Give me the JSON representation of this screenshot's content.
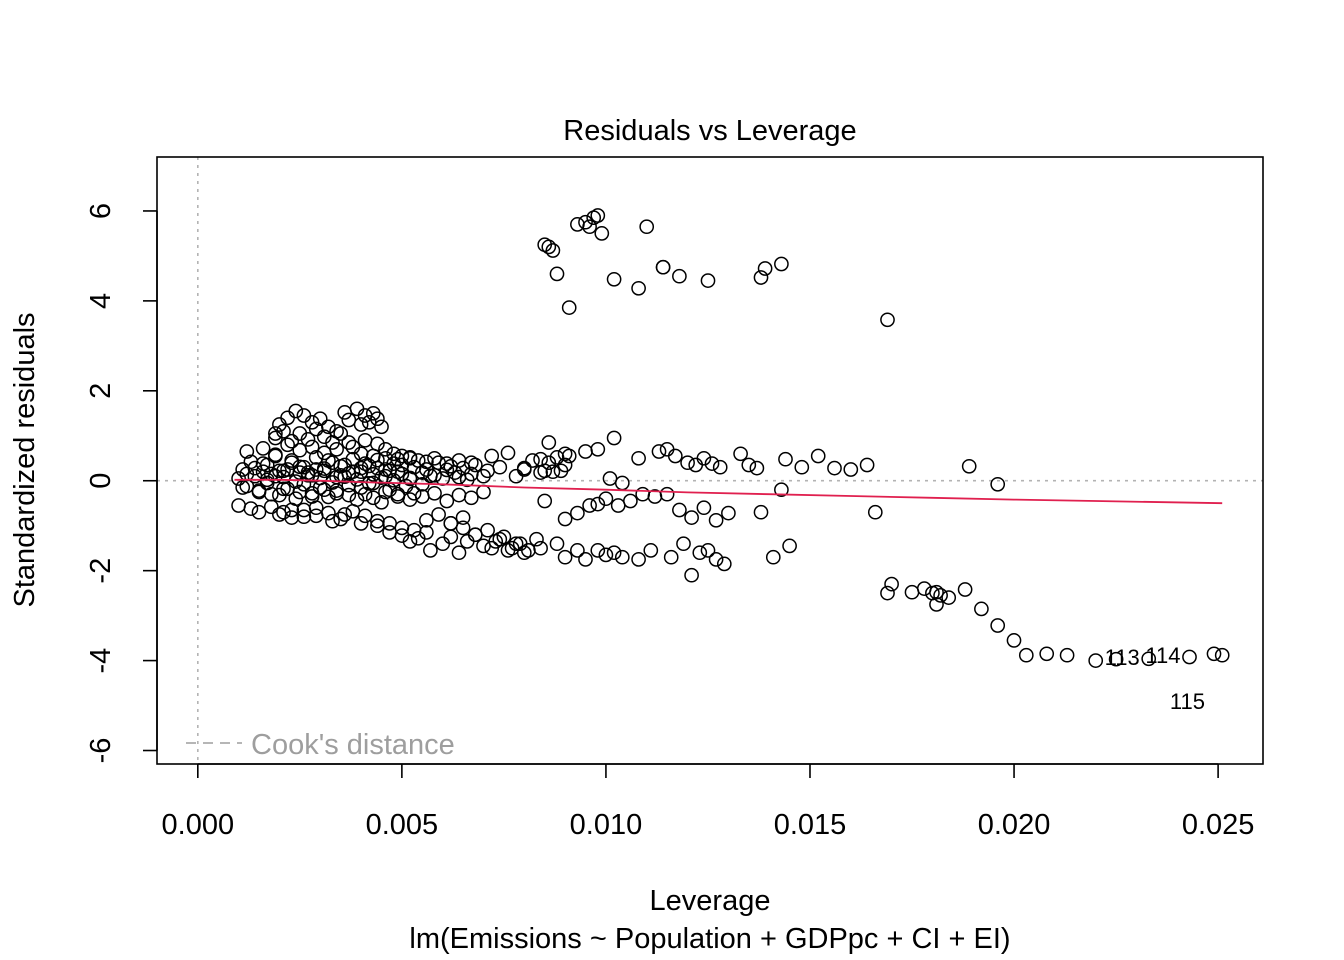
{
  "chart_data": {
    "type": "scatter",
    "title": "Residuals vs Leverage",
    "xlabel": "Leverage",
    "subtitle": "lm(Emissions ~ Population + GDPpc + CI + EI)",
    "ylabel": "Standardized residuals",
    "xlim": [
      -0.001,
      0.0261
    ],
    "ylim": [
      -6.3,
      7.2
    ],
    "x_ticks": [
      0.0,
      0.005,
      0.01,
      0.015,
      0.02,
      0.025
    ],
    "x_tick_labels": [
      "0.000",
      "0.005",
      "0.010",
      "0.015",
      "0.020",
      "0.025"
    ],
    "y_ticks": [
      -6,
      -4,
      -2,
      0,
      2,
      4,
      6
    ],
    "y_tick_labels": [
      "-6",
      "-4",
      "-2",
      "0",
      "2",
      "4",
      "6"
    ],
    "reference_lines": {
      "h": 0,
      "v": 0,
      "style": "dotted",
      "color": "#b3b3b3"
    },
    "legend": {
      "entries": [
        "Cook's distance"
      ],
      "position": "bottom-left",
      "line_style": "dashed",
      "color": "#9e9e9e"
    },
    "point_style": {
      "shape": "open-circle",
      "color": "#000000"
    },
    "smooth_color": "#e0204f",
    "smooth": {
      "x": [
        0.0009,
        0.002,
        0.003,
        0.004,
        0.006,
        0.008,
        0.01,
        0.012,
        0.014,
        0.016,
        0.018,
        0.02,
        0.022,
        0.0251
      ],
      "y": [
        0.02,
        0.02,
        0.0,
        -0.03,
        -0.08,
        -0.15,
        -0.2,
        -0.26,
        -0.3,
        -0.34,
        -0.38,
        -0.42,
        -0.45,
        -0.5
      ]
    },
    "labeled_points": [
      {
        "x": 0.0233,
        "y": -3.92,
        "label": "113"
      },
      {
        "x": 0.0243,
        "y": -3.88,
        "label": "114"
      },
      {
        "x": 0.0249,
        "y": -4.9,
        "label": "115"
      }
    ],
    "points_x": [
      0.0011,
      0.0013,
      0.0016,
      0.0018,
      0.0019,
      0.0021,
      0.0023,
      0.0025,
      0.0027,
      0.0029,
      0.0031,
      0.0033,
      0.0035,
      0.0036,
      0.0038,
      0.004,
      0.0042,
      0.0044,
      0.0046,
      0.0048,
      0.0012,
      0.0015,
      0.0017,
      0.002,
      0.0022,
      0.0024,
      0.0026,
      0.0028,
      0.003,
      0.0032,
      0.0034,
      0.0037,
      0.0039,
      0.0041,
      0.0043,
      0.0045,
      0.0047,
      0.0049,
      0.0051,
      0.0053,
      0.001,
      0.0014,
      0.0017,
      0.0021,
      0.0024,
      0.0027,
      0.003,
      0.0033,
      0.0036,
      0.0039,
      0.0042,
      0.0045,
      0.0048,
      0.005,
      0.0052,
      0.0055,
      0.0057,
      0.006,
      0.0063,
      0.0066,
      0.0012,
      0.0016,
      0.0019,
      0.0022,
      0.0025,
      0.0028,
      0.0031,
      0.0034,
      0.0037,
      0.004,
      0.0043,
      0.0046,
      0.0049,
      0.0052,
      0.0054,
      0.0056,
      0.0058,
      0.0061,
      0.0064,
      0.0067,
      0.001,
      0.0013,
      0.0015,
      0.0018,
      0.002,
      0.0023,
      0.0026,
      0.0029,
      0.0032,
      0.0035,
      0.0038,
      0.0041,
      0.0044,
      0.0047,
      0.005,
      0.0053,
      0.0056,
      0.0059,
      0.0062,
      0.0065,
      0.0014,
      0.0017,
      0.002,
      0.0023,
      0.0026,
      0.0029,
      0.0032,
      0.0035,
      0.0038,
      0.0041,
      0.0044,
      0.0047,
      0.005,
      0.0053,
      0.0056,
      0.0059,
      0.0062,
      0.0065,
      0.0068,
      0.0071,
      0.0011,
      0.0015,
      0.0018,
      0.0021,
      0.0025,
      0.0028,
      0.0031,
      0.0034,
      0.0037,
      0.004,
      0.0043,
      0.0046,
      0.0049,
      0.0052,
      0.0055,
      0.0058,
      0.0061,
      0.0064,
      0.0067,
      0.007,
      0.0012,
      0.0016,
      0.0019,
      0.0022,
      0.0025,
      0.0028,
      0.0031,
      0.0034,
      0.0037,
      0.004,
      0.0043,
      0.0046,
      0.0049,
      0.0052,
      0.0055,
      0.0058,
      0.0061,
      0.0064,
      0.0067,
      0.007,
      0.0019,
      0.002,
      0.0022,
      0.0024,
      0.0026,
      0.0028,
      0.003,
      0.0032,
      0.0034,
      0.0036,
      0.0037,
      0.0039,
      0.004,
      0.0041,
      0.0042,
      0.0043,
      0.0044,
      0.0045,
      0.0019,
      0.0021,
      0.0023,
      0.0025,
      0.0027,
      0.0029,
      0.0031,
      0.0033,
      0.0035,
      0.0038,
      0.0041,
      0.0044,
      0.0046,
      0.0048,
      0.005,
      0.0052,
      0.0021,
      0.0023,
      0.0026,
      0.0029,
      0.0033,
      0.0036,
      0.004,
      0.0044,
      0.0047,
      0.005,
      0.0052,
      0.0054,
      0.0056,
      0.0057,
      0.006,
      0.0062,
      0.0064,
      0.0066,
      0.0068,
      0.007,
      0.0072,
      0.0074,
      0.0076,
      0.0078,
      0.008,
      0.0062,
      0.0065,
      0.0068,
      0.0071,
      0.0073,
      0.0075,
      0.0077,
      0.0079,
      0.0081,
      0.0083,
      0.0072,
      0.0074,
      0.0076,
      0.0078,
      0.008,
      0.0082,
      0.0084,
      0.0086,
      0.0088,
      0.009,
      0.008,
      0.0084,
      0.0085,
      0.0086,
      0.0089,
      0.009,
      0.0091,
      0.0095,
      0.0098,
      0.0101,
      0.0102,
      0.0104,
      0.0108,
      0.0113,
      0.0115,
      0.0117,
      0.012,
      0.0122,
      0.0124,
      0.0126,
      0.0128,
      0.0133,
      0.0135,
      0.0137,
      0.0144,
      0.0148,
      0.0152,
      0.0156,
      0.016,
      0.0164,
      0.0189,
      0.0196,
      0.0087,
      0.009,
      0.0093,
      0.0096,
      0.0098,
      0.01,
      0.0103,
      0.0106,
      0.0109,
      0.0112,
      0.0115,
      0.0118,
      0.0121,
      0.0124,
      0.0127,
      0.013,
      0.0138,
      0.0143,
      0.0166,
      0.0085,
      0.0088,
      0.009,
      0.0093,
      0.0095,
      0.0098,
      0.01,
      0.0102,
      0.0104,
      0.0108,
      0.0111,
      0.0116,
      0.0119,
      0.0121,
      0.0123,
      0.0125,
      0.0127,
      0.0129,
      0.0141,
      0.0145,
      0.0084,
      0.0085,
      0.0086,
      0.0087,
      0.0088,
      0.0091,
      0.0093,
      0.0095,
      0.0096,
      0.0097,
      0.0098,
      0.0099,
      0.0102,
      0.0108,
      0.011,
      0.0114,
      0.0114,
      0.0118,
      0.0125,
      0.0138,
      0.0143,
      0.0139,
      0.0169,
      0.0169,
      0.017,
      0.0175,
      0.0178,
      0.018,
      0.0181,
      0.0182,
      0.0181,
      0.0184,
      0.0188,
      0.0192,
      0.0196,
      0.02,
      0.0203,
      0.0208,
      0.0213,
      0.022,
      0.0225,
      0.0233,
      0.0243,
      0.0251,
      0.0249
    ],
    "points_y": [
      0.25,
      0.42,
      0.38,
      0.15,
      0.55,
      0.22,
      0.45,
      0.31,
      0.18,
      0.52,
      0.27,
      0.4,
      0.12,
      0.35,
      0.48,
      0.2,
      0.33,
      0.46,
      0.25,
      0.38,
      -0.12,
      -0.25,
      -0.05,
      -0.32,
      -0.18,
      -0.4,
      -0.08,
      -0.28,
      -0.15,
      -0.36,
      -0.22,
      -0.1,
      -0.42,
      -0.3,
      -0.05,
      -0.48,
      -0.2,
      -0.35,
      -0.12,
      -0.28,
      0.05,
      0.1,
      0.02,
      0.08,
      -0.02,
      0.12,
      0.06,
      -0.04,
      0.09,
      0.03,
      -0.06,
      0.07,
      0.01,
      0.15,
      0.04,
      -0.08,
      0.11,
      0.05,
      0.18,
      0.02,
      0.65,
      0.72,
      0.58,
      0.8,
      0.68,
      0.75,
      0.62,
      0.7,
      0.85,
      0.6,
      0.55,
      0.5,
      0.48,
      0.52,
      0.45,
      0.42,
      0.5,
      0.38,
      0.45,
      0.4,
      -0.55,
      -0.62,
      -0.7,
      -0.58,
      -0.75,
      -0.65,
      -0.8,
      -0.6,
      -0.72,
      -0.85,
      -0.68,
      -0.78,
      -0.9,
      -0.95,
      -1.05,
      -1.1,
      -0.88,
      -0.75,
      -0.95,
      -0.82,
      0.28,
      0.35,
      0.22,
      0.4,
      0.3,
      0.25,
      0.45,
      0.32,
      0.2,
      0.38,
      0.28,
      0.22,
      0.35,
      0.3,
      0.25,
      0.4,
      0.32,
      0.28,
      0.35,
      0.22,
      -0.15,
      -0.22,
      -0.3,
      -0.18,
      -0.25,
      -0.35,
      -0.2,
      -0.28,
      -0.32,
      -0.15,
      -0.38,
      -0.25,
      -0.3,
      -0.42,
      -0.35,
      -0.28,
      -0.45,
      -0.32,
      -0.38,
      -0.25,
      0.15,
      0.2,
      0.1,
      0.25,
      0.18,
      0.12,
      0.22,
      0.08,
      0.16,
      0.28,
      0.14,
      0.1,
      0.2,
      0.06,
      0.18,
      0.12,
      0.24,
      0.08,
      0.15,
      0.1,
      1.05,
      1.25,
      1.4,
      1.55,
      1.45,
      1.3,
      1.38,
      1.2,
      1.1,
      1.52,
      1.35,
      1.6,
      1.25,
      1.45,
      1.3,
      1.5,
      1.38,
      1.2,
      0.95,
      1.1,
      0.88,
      1.05,
      0.92,
      1.15,
      0.98,
      0.85,
      1.05,
      0.75,
      0.9,
      0.82,
      0.7,
      0.6,
      0.55,
      0.5,
      -0.7,
      -0.82,
      -0.65,
      -0.78,
      -0.9,
      -0.75,
      -0.95,
      -1.0,
      -1.15,
      -1.22,
      -1.35,
      -1.28,
      -1.15,
      -1.55,
      -1.4,
      -1.25,
      -1.6,
      -1.35,
      -1.2,
      -1.45,
      -1.5,
      -1.3,
      -1.55,
      -1.4,
      -1.6,
      -0.95,
      -1.05,
      -1.2,
      -1.1,
      -1.35,
      -1.25,
      -1.5,
      -1.4,
      -1.55,
      -1.3,
      0.55,
      0.3,
      0.62,
      0.1,
      0.25,
      0.45,
      0.18,
      0.4,
      0.52,
      0.35,
      0.28,
      0.48,
      0.22,
      0.85,
      0.22,
      0.6,
      0.55,
      0.65,
      0.7,
      0.05,
      0.95,
      -0.05,
      0.5,
      0.65,
      0.7,
      0.55,
      0.4,
      0.35,
      0.5,
      0.38,
      0.3,
      0.6,
      0.35,
      0.28,
      0.48,
      0.3,
      0.55,
      0.28,
      0.25,
      0.35,
      0.32,
      -0.08,
      0.2,
      -0.85,
      -0.72,
      -0.55,
      -0.52,
      -0.4,
      -0.55,
      -0.45,
      -0.3,
      -0.35,
      -0.3,
      -0.65,
      -0.82,
      -0.6,
      -0.88,
      -0.72,
      -0.7,
      -0.2,
      -0.7,
      -0.45,
      -1.4,
      -1.7,
      -1.55,
      -1.75,
      -1.55,
      -1.65,
      -1.6,
      -1.7,
      -1.75,
      -1.55,
      -1.7,
      -1.4,
      -2.1,
      -1.6,
      -1.55,
      -1.75,
      -1.85,
      -1.7,
      -1.45,
      -1.5,
      5.25,
      5.2,
      5.12,
      4.6,
      3.85,
      5.7,
      5.75,
      5.65,
      5.85,
      5.9,
      5.5,
      4.48,
      4.28,
      5.65,
      4.75,
      4.75,
      4.55,
      4.45,
      4.52,
      4.82,
      4.72,
      3.58,
      -2.5,
      -2.3,
      -2.48,
      -2.4,
      -2.5,
      -2.75,
      -2.55,
      -2.48,
      -2.6,
      -2.42,
      -2.85,
      -3.22,
      -3.55,
      -3.88,
      -3.85,
      -3.88,
      -4.0,
      -3.97,
      -3.96,
      -3.92,
      -3.88,
      -3.85,
      -4.9
    ]
  }
}
